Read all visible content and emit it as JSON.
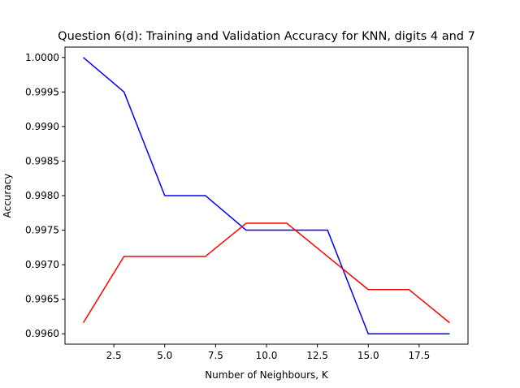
{
  "chart_data": {
    "type": "line",
    "title": "Question 6(d): Training and Validation Accuracy for KNN, digits 4 and 7",
    "xlabel": "Number of Neighbours, K",
    "ylabel": "Accuracy",
    "xlim": [
      0.1,
      19.9
    ],
    "ylim": [
      0.99585,
      1.00015
    ],
    "xticks": [
      2.5,
      5.0,
      7.5,
      10.0,
      12.5,
      15.0,
      17.5
    ],
    "xtick_labels": [
      "2.5",
      "5.0",
      "7.5",
      "10.0",
      "12.5",
      "15.0",
      "17.5"
    ],
    "yticks": [
      0.996,
      0.9965,
      0.997,
      0.9975,
      0.998,
      0.9985,
      0.999,
      0.9995,
      1.0
    ],
    "ytick_labels": [
      "0.9960",
      "0.9965",
      "0.9970",
      "0.9975",
      "0.9980",
      "0.9985",
      "0.9990",
      "0.9995",
      "1.0000"
    ],
    "grid": false,
    "x": [
      1,
      3,
      5,
      7,
      9,
      11,
      13,
      15,
      17,
      19
    ],
    "series": [
      {
        "color": "#0000ff",
        "values": [
          1.0,
          0.9995,
          0.998,
          0.998,
          0.9975,
          0.9975,
          0.9975,
          0.996,
          0.996,
          0.996
        ]
      },
      {
        "color": "#ff0000",
        "values": [
          0.99616,
          0.99712,
          0.99712,
          0.99712,
          0.9976,
          0.9976,
          0.99712,
          0.99664,
          0.99664,
          0.99616
        ]
      }
    ]
  }
}
